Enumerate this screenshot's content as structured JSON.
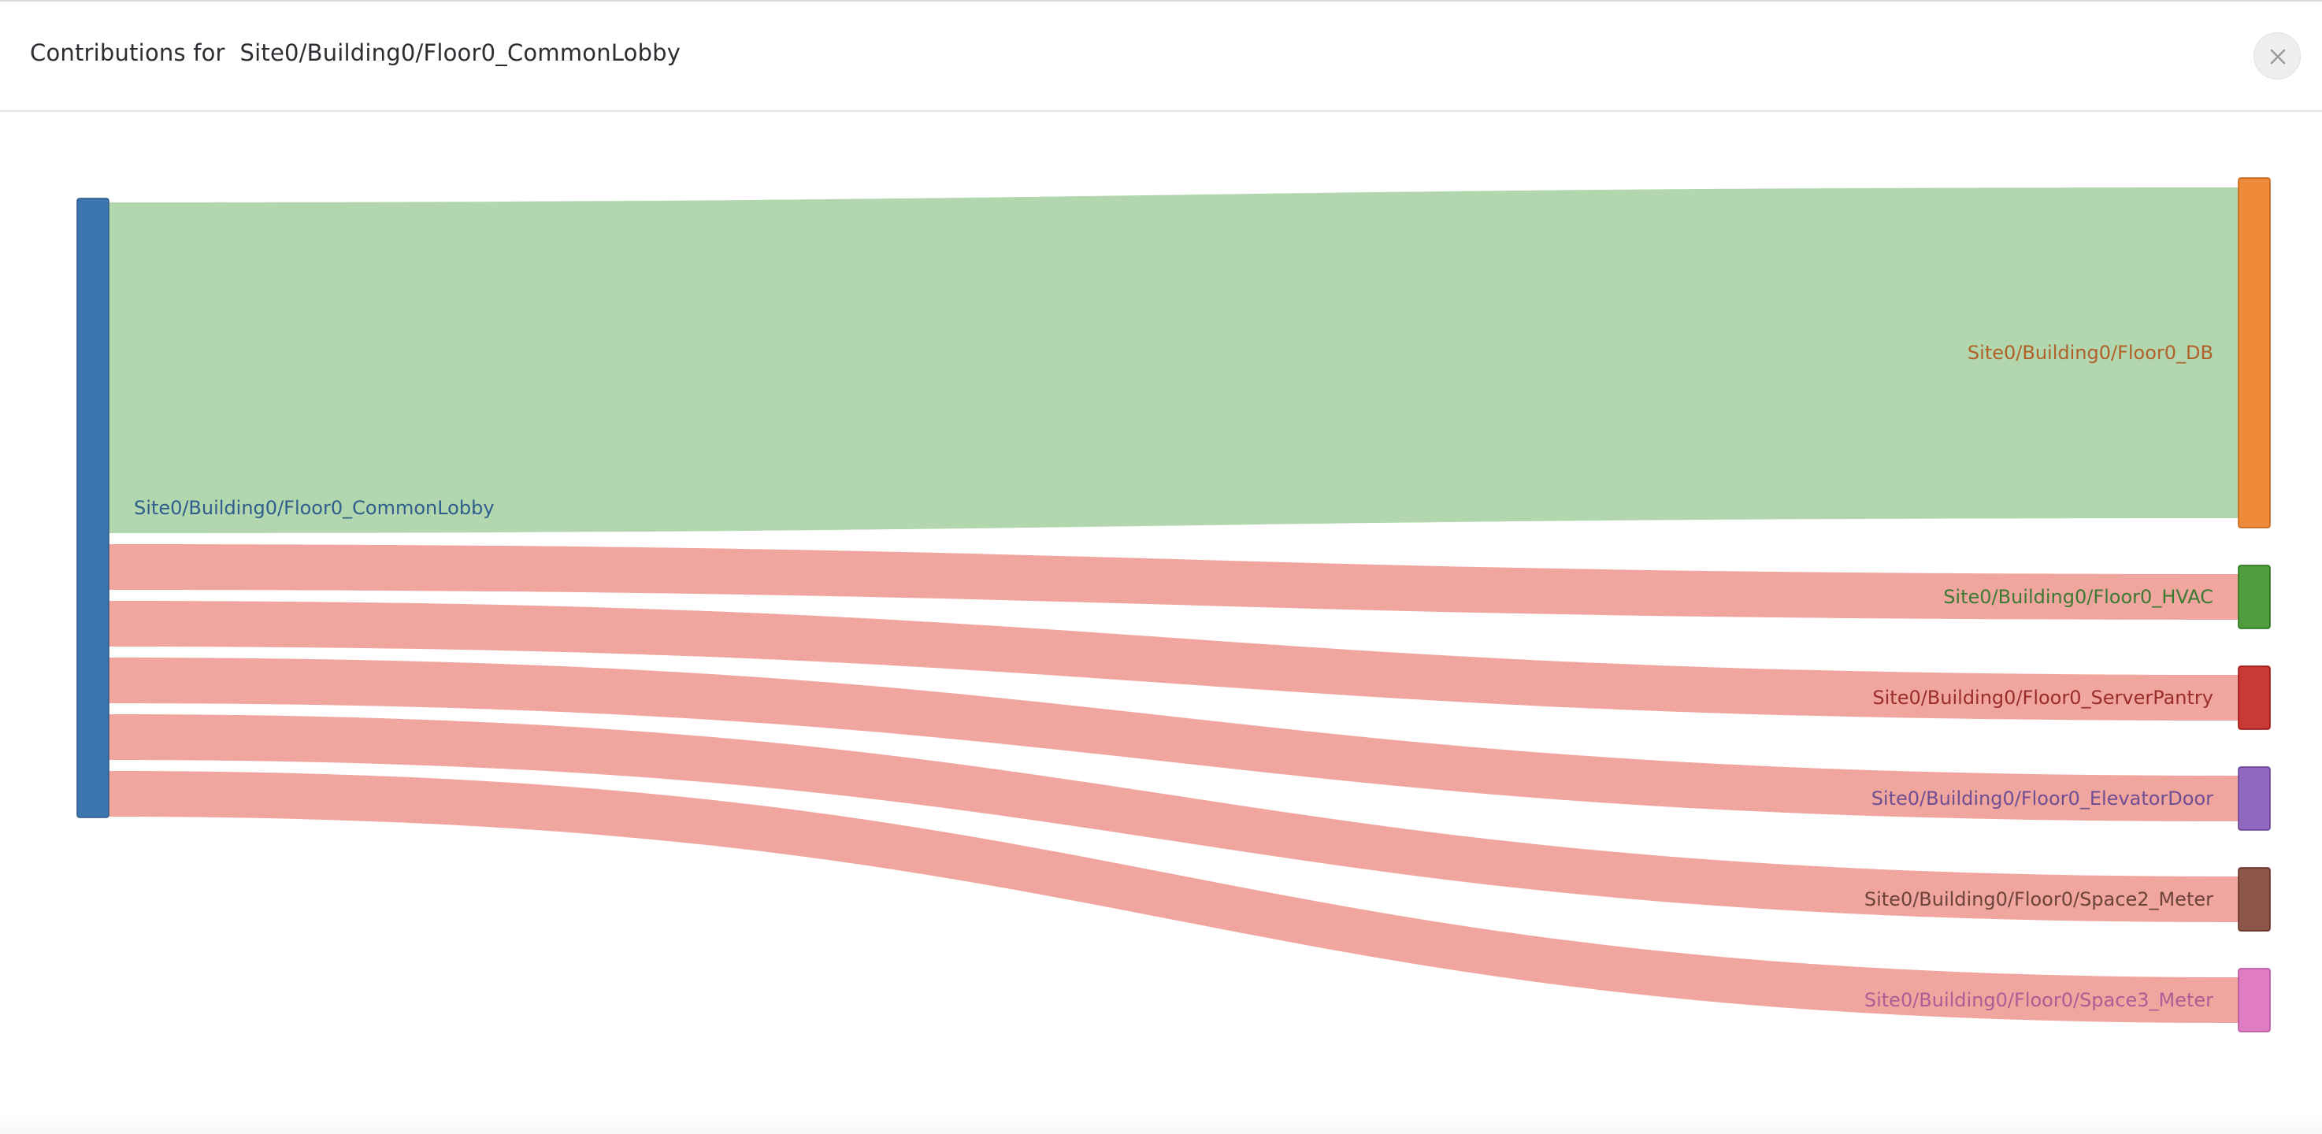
{
  "modal": {
    "title_prefix": "Contributions for",
    "title_path": "Site0/Building0/Floor0_CommonLobby",
    "close_label": "×"
  },
  "chart_data": {
    "type": "sankey",
    "title": "Contributions for Site0/Building0/Floor0_CommonLobby",
    "nodes": [
      {
        "id": "src",
        "label": "Site0/Building0/Floor0_CommonLobby",
        "color": "#3a75b0",
        "side": "left"
      },
      {
        "id": "db",
        "label": "Site0/Building0/Floor0_DB",
        "color": "#ee8a3a",
        "side": "right"
      },
      {
        "id": "hvac",
        "label": "Site0/Building0/Floor0_HVAC",
        "color": "#4e9e3f",
        "side": "right"
      },
      {
        "id": "server",
        "label": "Site0/Building0/Floor0_ServerPantry",
        "color": "#c93a37",
        "side": "right"
      },
      {
        "id": "elevator",
        "label": "Site0/Building0/Floor0_ElevatorDoor",
        "color": "#9068bd",
        "side": "right"
      },
      {
        "id": "space2",
        "label": "Site0/Building0/Floor0/Space2_Meter",
        "color": "#8c564b",
        "side": "right"
      },
      {
        "id": "space3",
        "label": "Site0/Building0/Floor0/Space3_Meter",
        "color": "#e07cc4",
        "side": "right"
      }
    ],
    "links": [
      {
        "source": "src",
        "target": "db",
        "value": 420,
        "color": "#b2d6ad"
      },
      {
        "source": "src",
        "target": "hvac",
        "value": 58,
        "color": "#f0a69f"
      },
      {
        "source": "src",
        "target": "server",
        "value": 58,
        "color": "#f0a69f"
      },
      {
        "source": "src",
        "target": "elevator",
        "value": 58,
        "color": "#f0a69f"
      },
      {
        "source": "src",
        "target": "space2",
        "value": 58,
        "color": "#f0a69f"
      },
      {
        "source": "src",
        "target": "space3",
        "value": 58,
        "color": "#f0a69f"
      }
    ],
    "label_colors": {
      "src": "#2f5d8c",
      "db": "#b0602a",
      "hvac": "#3c7a31",
      "server": "#9a2d2a",
      "elevator": "#6e4f92",
      "space2": "#6b433a",
      "space3": "#a95f95"
    }
  }
}
